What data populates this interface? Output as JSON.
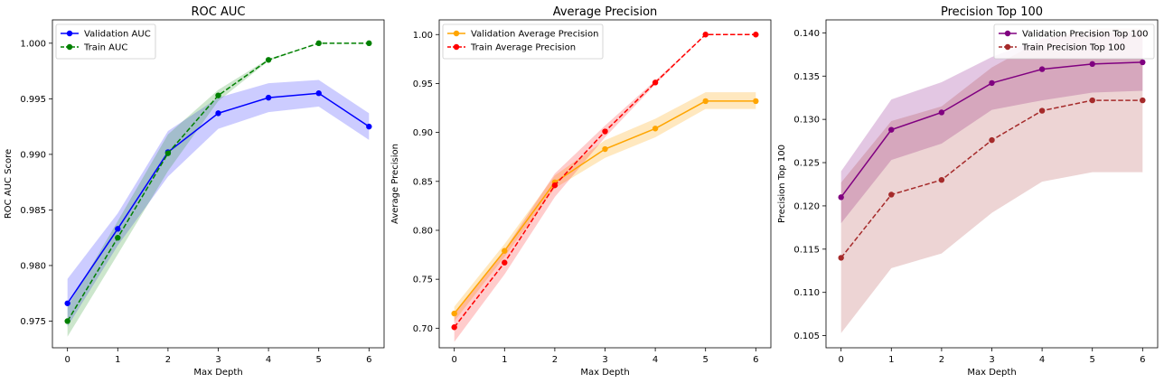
{
  "chart_data": [
    {
      "type": "line",
      "title": "ROC AUC",
      "xlabel": "Max Depth",
      "ylabel": "ROC AUC Score",
      "x": [
        0,
        1,
        2,
        3,
        4,
        5,
        6
      ],
      "xticks": [
        "0",
        "1",
        "2",
        "3",
        "4",
        "5",
        "6"
      ],
      "xlim": [
        -0.3,
        6.3
      ],
      "ylim": [
        0.9726,
        1.0021
      ],
      "yticks": [
        "0.975",
        "0.980",
        "0.985",
        "0.990",
        "0.995",
        "1.000"
      ],
      "yticks_values": [
        0.975,
        0.98,
        0.985,
        0.99,
        0.995,
        1.0
      ],
      "grid": false,
      "legend": "upper left",
      "series": [
        {
          "name": "Validation AUC",
          "color": "#0000ff",
          "style": "solid",
          "marker": "circle",
          "values": [
            0.9766,
            0.9833,
            0.9902,
            0.9937,
            0.9951,
            0.9955,
            0.9925
          ],
          "band": {
            "color": "#0000ff",
            "opacity": 0.2,
            "lower": [
              0.9745,
              0.9818,
              0.988,
              0.9923,
              0.9938,
              0.9943,
              0.9913
            ],
            "upper": [
              0.9788,
              0.9847,
              0.9921,
              0.9951,
              0.9964,
              0.9967,
              0.9937
            ]
          }
        },
        {
          "name": "Train AUC",
          "color": "#008000",
          "style": "dashed",
          "marker": "circle",
          "values": [
            0.975,
            0.9825,
            0.9901,
            0.9953,
            0.9985,
            1.0,
            1.0
          ],
          "band": {
            "color": "#008000",
            "opacity": 0.2,
            "lower": [
              0.9736,
              0.981,
              0.9885,
              0.9948,
              0.9984,
              1.0,
              1.0
            ],
            "upper": [
              0.9763,
              0.984,
              0.9918,
              0.9958,
              0.9986,
              1.0,
              1.0
            ]
          }
        }
      ]
    },
    {
      "type": "line",
      "title": "Average Precision",
      "xlabel": "Max Depth",
      "ylabel": "Average Precision",
      "x": [
        0,
        1,
        2,
        3,
        4,
        5,
        6
      ],
      "xticks": [
        "0",
        "1",
        "2",
        "3",
        "4",
        "5",
        "6"
      ],
      "xlim": [
        -0.3,
        6.3
      ],
      "ylim": [
        0.68,
        1.015
      ],
      "yticks": [
        "0.70",
        "0.75",
        "0.80",
        "0.85",
        "0.90",
        "0.95",
        "1.00"
      ],
      "yticks_values": [
        0.7,
        0.75,
        0.8,
        0.85,
        0.9,
        0.95,
        1.0
      ],
      "grid": false,
      "legend": "upper left",
      "series": [
        {
          "name": "Validation Average Precision",
          "color": "#ffa500",
          "style": "solid",
          "marker": "circle",
          "values": [
            0.715,
            0.779,
            0.849,
            0.883,
            0.904,
            0.932,
            0.932
          ],
          "band": {
            "color": "#ffa500",
            "opacity": 0.25,
            "lower": [
              0.707,
              0.773,
              0.843,
              0.874,
              0.895,
              0.924,
              0.924
            ],
            "upper": [
              0.722,
              0.786,
              0.856,
              0.892,
              0.914,
              0.941,
              0.941
            ]
          }
        },
        {
          "name": "Train Average Precision",
          "color": "#ff0000",
          "style": "dashed",
          "marker": "circle",
          "values": [
            0.701,
            0.767,
            0.846,
            0.901,
            0.951,
            1.0,
            1.0
          ],
          "band": {
            "color": "#ff0000",
            "opacity": 0.2,
            "lower": [
              0.686,
              0.755,
              0.834,
              0.895,
              0.949,
              1.0,
              1.0
            ],
            "upper": [
              0.716,
              0.78,
              0.858,
              0.907,
              0.953,
              1.0,
              1.0
            ]
          }
        }
      ]
    },
    {
      "type": "line",
      "title": "Precision Top 100",
      "xlabel": "Max Depth",
      "ylabel": "Precision Top 100",
      "x": [
        0,
        1,
        2,
        3,
        4,
        5,
        6
      ],
      "xticks": [
        "0",
        "1",
        "2",
        "3",
        "4",
        "5",
        "6"
      ],
      "xlim": [
        -0.3,
        6.3
      ],
      "ylim": [
        0.1036,
        0.1415
      ],
      "yticks": [
        "0.105",
        "0.110",
        "0.115",
        "0.120",
        "0.125",
        "0.130",
        "0.135",
        "0.140"
      ],
      "yticks_values": [
        0.105,
        0.11,
        0.115,
        0.12,
        0.125,
        0.13,
        0.135,
        0.14
      ],
      "grid": false,
      "legend": "upper right",
      "series": [
        {
          "name": "Validation Precision Top 100",
          "color": "#800080",
          "style": "solid",
          "marker": "circle",
          "values": [
            0.121,
            0.1288,
            0.1308,
            0.1342,
            0.1358,
            0.1364,
            0.1366
          ],
          "band": {
            "color": "#800080",
            "opacity": 0.22,
            "lower": [
              0.118,
              0.1253,
              0.1272,
              0.1311,
              0.1322,
              0.1331,
              0.1333
            ],
            "upper": [
              0.124,
              0.1323,
              0.1343,
              0.1372,
              0.1394,
              0.14,
              0.14
            ]
          }
        },
        {
          "name": "Train Precision Top 100",
          "color": "#a52a2a",
          "style": "dashed",
          "marker": "circle",
          "values": [
            0.114,
            0.1213,
            0.123,
            0.1276,
            0.131,
            0.1322,
            0.1322
          ],
          "band": {
            "color": "#a52a2a",
            "opacity": 0.2,
            "lower": [
              0.1053,
              0.1128,
              0.1145,
              0.1192,
              0.1228,
              0.1239,
              0.1239
            ],
            "upper": [
              0.1227,
              0.1298,
              0.1315,
              0.136,
              0.1392,
              0.1405,
              0.1405
            ]
          }
        }
      ]
    }
  ]
}
